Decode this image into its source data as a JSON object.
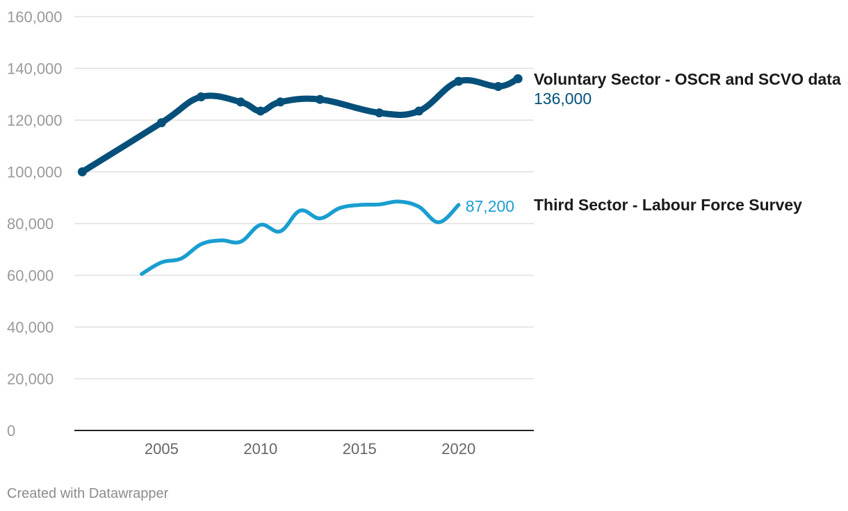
{
  "chart_data": {
    "type": "line",
    "title": "",
    "xlabel": "",
    "ylabel": "",
    "xlim": [
      2000.6,
      2023.8
    ],
    "ylim": [
      0,
      160000
    ],
    "y_ticks": [
      0,
      20000,
      40000,
      60000,
      80000,
      100000,
      120000,
      140000,
      160000
    ],
    "y_tick_labels": [
      "0",
      "20,000",
      "40,000",
      "60,000",
      "80,000",
      "100,000",
      "120,000",
      "140,000",
      "160,000"
    ],
    "x_ticks": [
      2005,
      2010,
      2015,
      2020
    ],
    "x_tick_labels": [
      "2005",
      "2010",
      "2015",
      "2020"
    ],
    "grid": true,
    "series": [
      {
        "name": "Voluntary Sector - OSCR and SCVO data",
        "color": "#05507a",
        "markers": true,
        "end_label": "136,000",
        "x": [
          2001,
          2005,
          2007,
          2009,
          2010,
          2011,
          2013,
          2016,
          2018,
          2020,
          2022,
          2023
        ],
        "values": [
          100000,
          119000,
          129000,
          127000,
          123500,
          127000,
          128000,
          122800,
          123500,
          135000,
          133000,
          136000
        ]
      },
      {
        "name": "Third Sector - Labour Force Survey",
        "color": "#1a9ed0",
        "markers": false,
        "end_label": "87,200",
        "x": [
          2004,
          2005,
          2006,
          2007,
          2008,
          2009,
          2010,
          2011,
          2012,
          2013,
          2014,
          2015,
          2016,
          2017,
          2018,
          2019,
          2020
        ],
        "values": [
          60500,
          65000,
          66500,
          72000,
          73500,
          73000,
          79500,
          77000,
          85000,
          82000,
          86000,
          87200,
          87400,
          88500,
          86500,
          80500,
          87200
        ]
      }
    ]
  },
  "footer": "Created with Datawrapper"
}
